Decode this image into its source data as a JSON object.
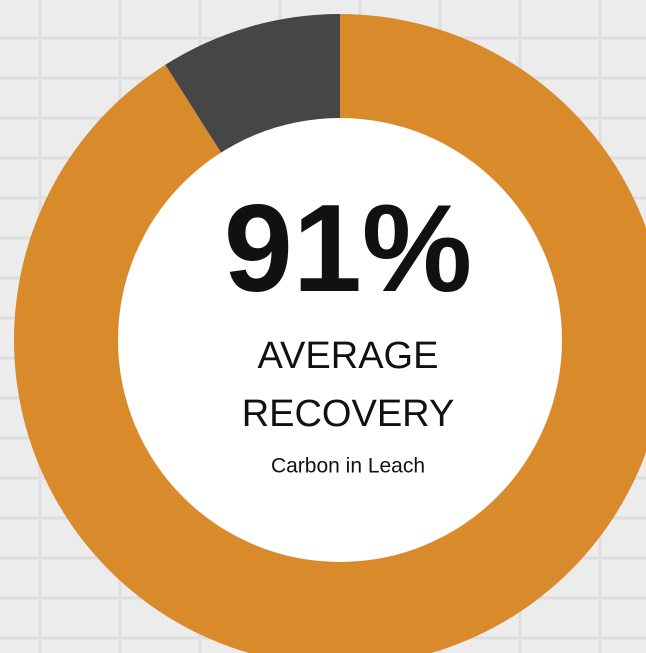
{
  "chart_data": {
    "type": "pie",
    "donut": true,
    "values": [
      91,
      9
    ],
    "value_labels": [
      "91%",
      null
    ],
    "colors": [
      "#d98a2b",
      "#464646"
    ],
    "caption": [
      "AVERAGE",
      "RECOVERY"
    ],
    "subcaption": "Carbon in Leach"
  }
}
